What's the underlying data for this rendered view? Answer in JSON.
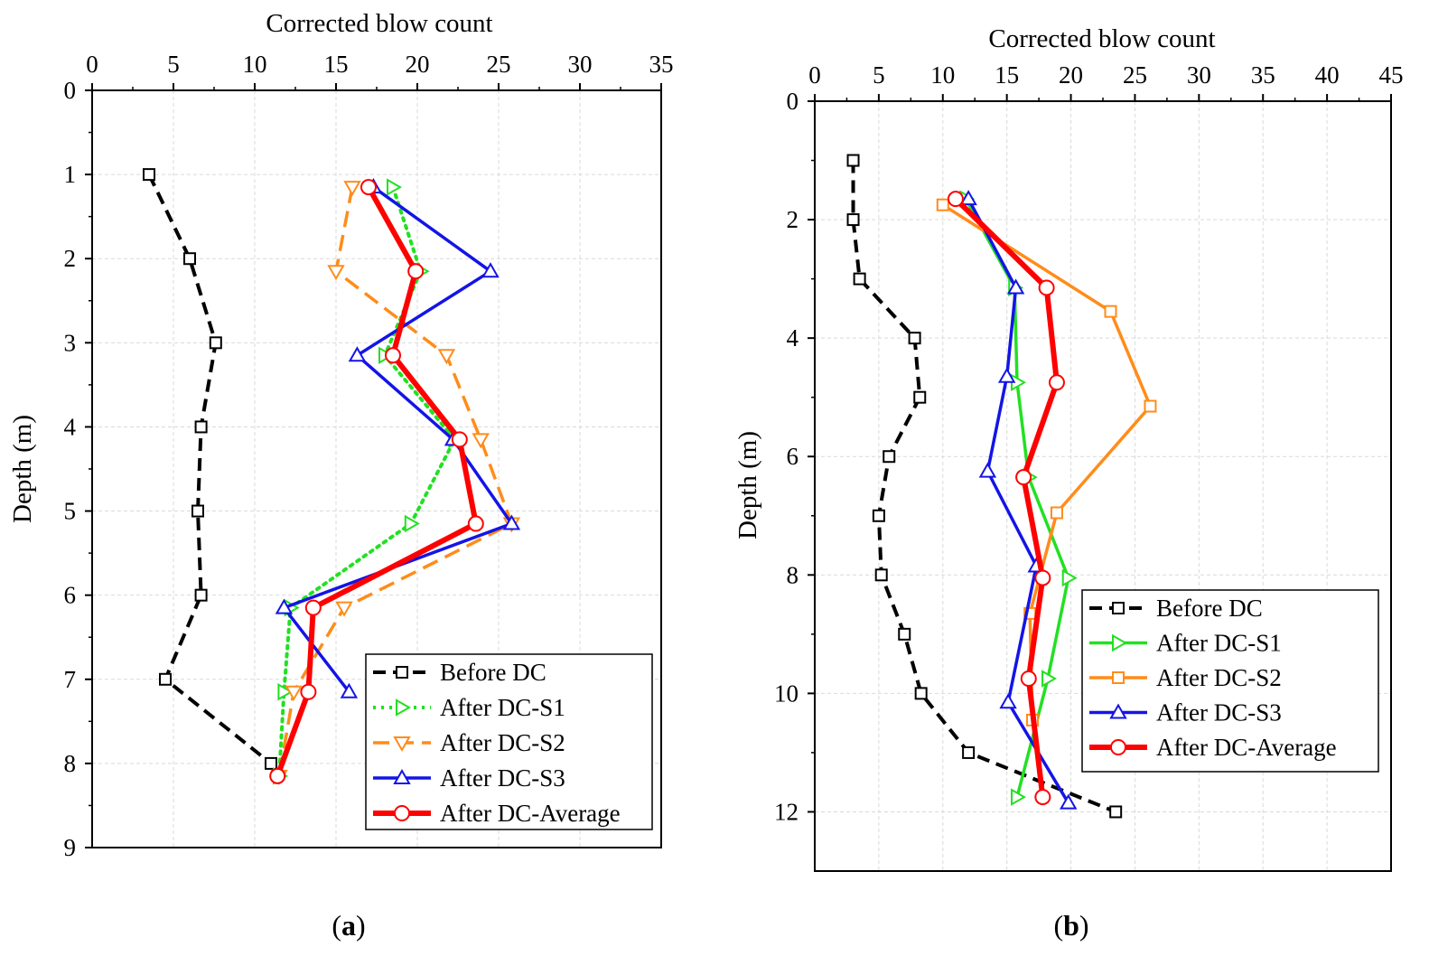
{
  "colors": {
    "before": "#000000",
    "s1": "#22e022",
    "s2": "#ff8c1a",
    "s3": "#1414e6",
    "average": "#ff0000",
    "grid": "#d9d9d9"
  },
  "chart_data": [
    {
      "type": "line",
      "panel_label_open": "(",
      "panel_label_letter": "a",
      "panel_label_close": ")",
      "xlabel": "Corrected blow count",
      "ylabel": "Depth (m)",
      "xlim": [
        0,
        35
      ],
      "ylim": [
        0,
        9
      ],
      "xticks": [
        0,
        5,
        10,
        15,
        20,
        25,
        30,
        35
      ],
      "yticks": [
        0,
        1,
        2,
        3,
        4,
        5,
        6,
        7,
        8,
        9
      ],
      "grid": true,
      "legend_position": "bottom-right",
      "series": [
        {
          "name": "Before DC",
          "key": "before",
          "marker": "square",
          "dash": "dash",
          "width": 4,
          "points": [
            [
              3.5,
              1.0
            ],
            [
              6.0,
              2.0
            ],
            [
              7.6,
              3.0
            ],
            [
              6.7,
              4.0
            ],
            [
              6.5,
              5.0
            ],
            [
              6.7,
              6.0
            ],
            [
              4.5,
              7.0
            ],
            [
              11.0,
              8.0
            ]
          ]
        },
        {
          "name": "After DC-S1",
          "key": "s1",
          "marker": "triangle-right",
          "dash": "dot",
          "width": 4,
          "points": [
            [
              18.5,
              1.15
            ],
            [
              20.2,
              2.15
            ],
            [
              18.0,
              3.15
            ],
            [
              22.3,
              4.15
            ],
            [
              19.6,
              5.15
            ],
            [
              12.2,
              6.15
            ],
            [
              11.8,
              7.15
            ],
            [
              11.5,
              8.15
            ]
          ]
        },
        {
          "name": "After DC-S2",
          "key": "s2",
          "marker": "triangle-down",
          "dash": "longdash",
          "width": 3.5,
          "points": [
            [
              16.0,
              1.15
            ],
            [
              15.0,
              2.15
            ],
            [
              21.8,
              3.15
            ],
            [
              23.9,
              4.15
            ],
            [
              25.8,
              5.15
            ],
            [
              15.5,
              6.15
            ],
            [
              12.4,
              7.15
            ],
            [
              11.5,
              8.15
            ]
          ]
        },
        {
          "name": "After DC-S3",
          "key": "s3",
          "marker": "triangle-up",
          "dash": "solid",
          "width": 3.5,
          "points": [
            [
              17.3,
              1.15
            ],
            [
              24.5,
              2.15
            ],
            [
              16.3,
              3.15
            ],
            [
              22.2,
              4.15
            ],
            [
              25.8,
              5.15
            ],
            [
              11.8,
              6.15
            ],
            [
              15.8,
              7.15
            ]
          ]
        },
        {
          "name": "After DC-Average",
          "key": "average",
          "marker": "circle",
          "dash": "solid",
          "width": 6,
          "points": [
            [
              17.0,
              1.15
            ],
            [
              19.9,
              2.15
            ],
            [
              18.5,
              3.15
            ],
            [
              22.6,
              4.15
            ],
            [
              23.6,
              5.15
            ],
            [
              13.6,
              6.15
            ],
            [
              13.3,
              7.15
            ],
            [
              11.4,
              8.15
            ]
          ]
        }
      ]
    },
    {
      "type": "line",
      "panel_label_open": "(",
      "panel_label_letter": "b",
      "panel_label_close": ")",
      "xlabel": "Corrected blow count",
      "ylabel": "Depth (m)",
      "xlim": [
        0,
        45
      ],
      "ylim": [
        0,
        13
      ],
      "xticks": [
        0,
        5,
        10,
        15,
        20,
        25,
        30,
        35,
        40,
        45
      ],
      "yticks": [
        0,
        2,
        4,
        6,
        8,
        10,
        12
      ],
      "grid": true,
      "legend_position": "bottom-right",
      "series": [
        {
          "name": "Before DC",
          "key": "before",
          "marker": "square",
          "dash": "dash",
          "width": 4,
          "points": [
            [
              3.0,
              1.0
            ],
            [
              3.0,
              2.0
            ],
            [
              3.5,
              3.0
            ],
            [
              7.8,
              4.0
            ],
            [
              8.2,
              5.0
            ],
            [
              5.8,
              6.0
            ],
            [
              5.0,
              7.0
            ],
            [
              5.2,
              8.0
            ],
            [
              7.0,
              9.0
            ],
            [
              8.3,
              10.0
            ],
            [
              12.0,
              11.0
            ],
            [
              23.5,
              12.0
            ]
          ]
        },
        {
          "name": "After DC-S1",
          "key": "s1",
          "marker": "triangle-right",
          "dash": "solid",
          "width": 3.5,
          "points": [
            [
              11.8,
              1.65
            ],
            [
              15.6,
              3.15
            ],
            [
              15.8,
              4.75
            ],
            [
              16.7,
              6.35
            ],
            [
              19.8,
              8.05
            ],
            [
              18.2,
              9.75
            ],
            [
              15.8,
              11.75
            ]
          ]
        },
        {
          "name": "After DC-S2",
          "key": "s2",
          "marker": "square",
          "dash": "solid",
          "width": 3.5,
          "points": [
            [
              10.0,
              1.75
            ],
            [
              23.1,
              3.55
            ],
            [
              26.2,
              5.15
            ],
            [
              18.9,
              6.95
            ],
            [
              16.8,
              8.65
            ],
            [
              17.0,
              10.45
            ]
          ]
        },
        {
          "name": "After DC-S3",
          "key": "s3",
          "marker": "triangle-up",
          "dash": "solid",
          "width": 3.5,
          "points": [
            [
              12.0,
              1.65
            ],
            [
              15.7,
              3.15
            ],
            [
              15.0,
              4.65
            ],
            [
              13.5,
              6.25
            ],
            [
              17.3,
              7.85
            ],
            [
              15.1,
              10.15
            ],
            [
              19.8,
              11.85
            ]
          ]
        },
        {
          "name": "After DC-Average",
          "key": "average",
          "marker": "circle",
          "dash": "solid",
          "width": 6,
          "points": [
            [
              11.0,
              1.65
            ],
            [
              18.1,
              3.15
            ],
            [
              18.9,
              4.75
            ],
            [
              16.3,
              6.35
            ],
            [
              17.8,
              8.05
            ],
            [
              16.7,
              9.75
            ],
            [
              17.8,
              11.75
            ]
          ]
        }
      ]
    }
  ]
}
